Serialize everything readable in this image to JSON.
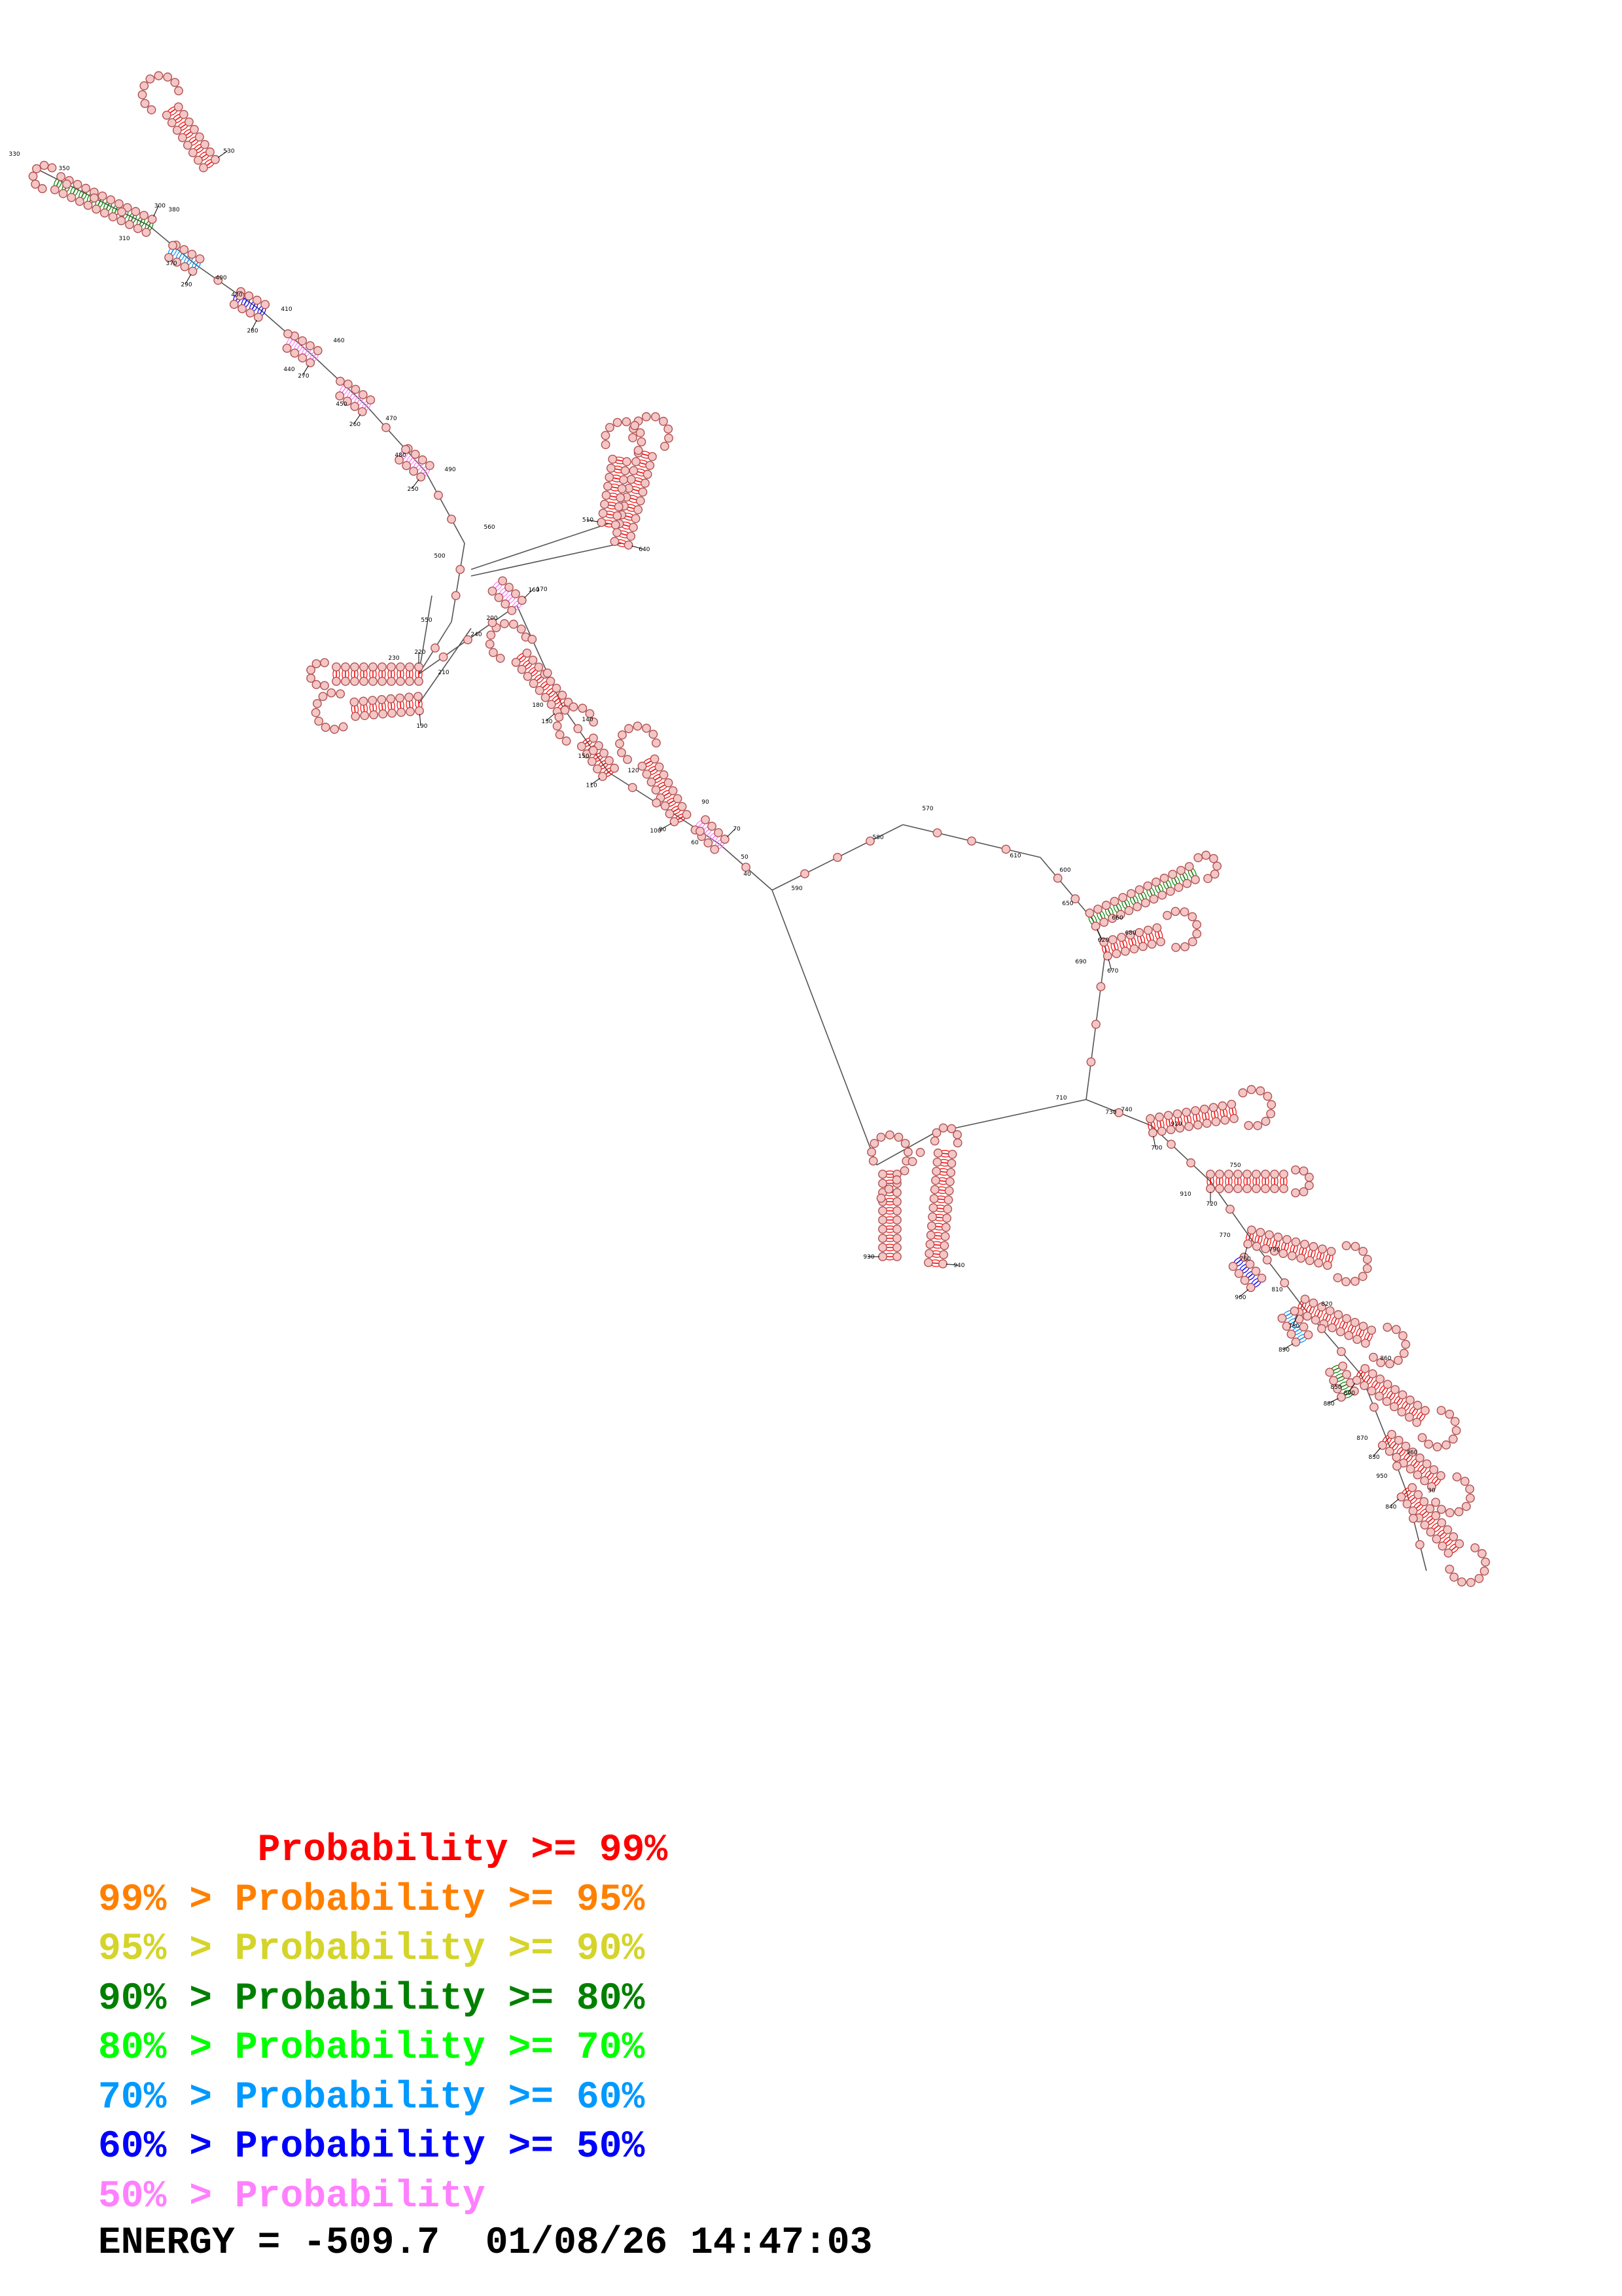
{
  "legend": [
    {
      "text": "       Probability >= 99%",
      "color": "#ff0000"
    },
    {
      "text": "99% > Probability >= 95%",
      "color": "#ff8000"
    },
    {
      "text": "95% > Probability >= 90%",
      "color": "#d4d42a"
    },
    {
      "text": "90% > Probability >= 80%",
      "color": "#008000"
    },
    {
      "text": "80% > Probability >= 70%",
      "color": "#00ff00"
    },
    {
      "text": "70% > Probability >= 60%",
      "color": "#0099ff"
    },
    {
      "text": "60% > Probability >= 50%",
      "color": "#0000ff"
    },
    {
      "text": "50% > Probability",
      "color": "#ff80ff"
    }
  ],
  "energy_line": "ENERGY = -509.7  01/08/26 14:47:03",
  "nucleotide_fill": "#f4c6c6",
  "helices": [
    {
      "color": "#008000",
      "label": "300"
    },
    {
      "color": "#0099ff",
      "label": "290"
    },
    {
      "color": "#0000ff",
      "label": "280"
    },
    {
      "color": "#ff80ff",
      "label": "270"
    },
    {
      "color": "#ff80ff",
      "label": "260"
    },
    {
      "color": "#ff80ff",
      "label": "250"
    },
    {
      "color": "#ff0000",
      "label": "640"
    },
    {
      "color": "#ff0000",
      "label": "510"
    },
    {
      "color": "#ff0000",
      "label": "530"
    },
    {
      "color": "#ff0000",
      "label": "220"
    },
    {
      "color": "#ff0000",
      "label": "190"
    },
    {
      "color": "#ff80ff",
      "label": "160"
    },
    {
      "color": "#ff0000",
      "label": "130"
    },
    {
      "color": "#ff0000",
      "label": "110"
    },
    {
      "color": "#ff0000",
      "label": "80"
    },
    {
      "color": "#ff80ff",
      "label": "70"
    },
    {
      "color": "#008000",
      "label": "620"
    },
    {
      "color": "#ff0000",
      "label": "670"
    },
    {
      "color": "#ff0000",
      "label": "930"
    },
    {
      "color": "#ff0000",
      "label": "940"
    },
    {
      "color": "#ff0000",
      "label": "700"
    },
    {
      "color": "#ff0000",
      "label": "720"
    },
    {
      "color": "#ff0000",
      "label": "760"
    },
    {
      "color": "#0000ff",
      "label": "900"
    },
    {
      "color": "#ff0000",
      "label": "780"
    },
    {
      "color": "#0099ff",
      "label": "890"
    },
    {
      "color": "#008000",
      "label": "880"
    },
    {
      "color": "#ff0000",
      "label": "800"
    },
    {
      "color": "#ff0000",
      "label": "830"
    },
    {
      "color": "#ff0000",
      "label": "840"
    }
  ],
  "extra_labels": [
    "330",
    "350",
    "310",
    "380",
    "370",
    "400",
    "430",
    "410",
    "440",
    "460",
    "450",
    "470",
    "480",
    "490",
    "500",
    "560",
    "550",
    "240",
    "230",
    "210",
    "200",
    "170",
    "180",
    "140",
    "150",
    "120",
    "100",
    "90",
    "60",
    "50",
    "40",
    "590",
    "580",
    "570",
    "610",
    "600",
    "650",
    "660",
    "690",
    "680",
    "710",
    "730",
    "740",
    "920",
    "910",
    "750",
    "770",
    "790",
    "810",
    "820",
    "850",
    "860",
    "870",
    "960",
    "950",
    "30"
  ]
}
